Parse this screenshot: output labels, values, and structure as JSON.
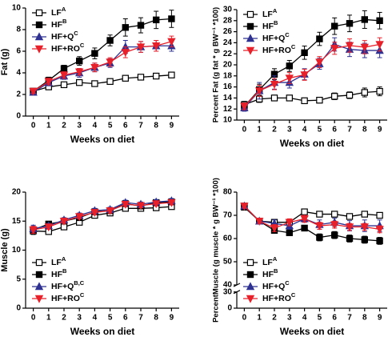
{
  "chart_data": [
    {
      "type": "line",
      "ylabel": "Fat (g)",
      "xlabel": "Weeks on diet",
      "x": [
        0,
        1,
        2,
        3,
        4,
        5,
        6,
        7,
        8,
        9
      ],
      "xlim": [
        -0.5,
        9.5
      ],
      "xticks": [
        0,
        1,
        2,
        3,
        4,
        5,
        6,
        7,
        8,
        9
      ],
      "ylim": [
        0,
        10
      ],
      "yticks": [
        0,
        2,
        4,
        6,
        8,
        10
      ],
      "legend": "upper left",
      "series": [
        {
          "name": "LF",
          "sup": "A",
          "color": "#000",
          "marker": "square-open",
          "values": [
            2.3,
            2.7,
            2.9,
            3.1,
            3.0,
            3.2,
            3.5,
            3.6,
            3.7,
            3.8
          ],
          "errors": [
            0.15,
            0.2,
            0.15,
            0.15,
            0.15,
            0.15,
            0.2,
            0.2,
            0.25,
            0.25
          ]
        },
        {
          "name": "HF",
          "sup": "B",
          "color": "#000",
          "marker": "square",
          "values": [
            2.3,
            3.3,
            4.4,
            5.1,
            5.8,
            7.0,
            8.2,
            8.4,
            8.9,
            9.0
          ],
          "errors": [
            0.2,
            0.3,
            0.3,
            0.4,
            0.5,
            0.5,
            0.8,
            0.7,
            0.8,
            0.8
          ]
        },
        {
          "name": "HF+Q",
          "sup": "C",
          "color": "#2e3192",
          "marker": "triangle",
          "values": [
            2.2,
            3.1,
            3.7,
            4.0,
            4.5,
            4.9,
            6.4,
            6.4,
            6.5,
            6.5
          ],
          "errors": [
            0.2,
            0.3,
            0.3,
            0.4,
            0.4,
            0.4,
            0.6,
            0.5,
            0.5,
            0.5
          ]
        },
        {
          "name": "HF+RO",
          "sup": "C",
          "color": "#e8202a",
          "marker": "triangle-down",
          "values": [
            2.3,
            3.2,
            3.8,
            4.1,
            4.5,
            5.0,
            5.9,
            6.4,
            6.5,
            6.9
          ],
          "errors": [
            0.2,
            0.3,
            0.3,
            0.3,
            0.4,
            0.4,
            0.5,
            0.5,
            0.5,
            0.5
          ]
        }
      ]
    },
    {
      "type": "line",
      "ylabel": "Percent Fat (g fat * g BW⁻¹ *100)",
      "xlabel": "Weeks on diet",
      "x": [
        0,
        1,
        2,
        3,
        4,
        5,
        6,
        7,
        8,
        9
      ],
      "xlim": [
        -0.5,
        9.5
      ],
      "xticks": [
        0,
        1,
        2,
        3,
        4,
        5,
        6,
        7,
        8,
        9
      ],
      "ylim": [
        10,
        30
      ],
      "yticks": [
        10,
        12,
        14,
        16,
        18,
        20,
        22,
        24,
        26,
        28,
        30
      ],
      "legend": "upper left",
      "series": [
        {
          "name": "LF",
          "sup": "A",
          "color": "#000",
          "marker": "square-open",
          "values": [
            12.8,
            13.8,
            14.0,
            14.0,
            13.5,
            13.6,
            14.3,
            14.5,
            15.0,
            15.2
          ],
          "errors": [
            0.6,
            0.6,
            0.5,
            0.5,
            0.5,
            0.5,
            0.6,
            0.6,
            0.8,
            0.8
          ]
        },
        {
          "name": "HF",
          "sup": "B",
          "color": "#000",
          "marker": "square",
          "values": [
            12.5,
            15.5,
            18.3,
            19.8,
            22.2,
            24.7,
            27.0,
            27.5,
            28.2,
            28.0
          ],
          "errors": [
            0.6,
            1.0,
            1.0,
            1.0,
            1.2,
            1.2,
            1.5,
            1.5,
            1.6,
            1.5
          ]
        },
        {
          "name": "HF+Q",
          "sup": "C",
          "color": "#2e3192",
          "marker": "triangle",
          "values": [
            12.2,
            15.3,
            16.8,
            16.8,
            18.3,
            20.2,
            23.7,
            22.8,
            22.6,
            22.6
          ],
          "errors": [
            0.6,
            1.5,
            1.2,
            1.0,
            1.0,
            1.0,
            1.2,
            1.3,
            1.3,
            1.3
          ]
        },
        {
          "name": "HF+RO",
          "sup": "C",
          "color": "#e8202a",
          "marker": "triangle-down",
          "values": [
            12.5,
            15.3,
            16.5,
            17.6,
            18.2,
            20.5,
            23.0,
            23.5,
            23.2,
            23.7
          ],
          "errors": [
            0.6,
            1.0,
            1.0,
            1.0,
            1.0,
            1.0,
            1.1,
            1.2,
            1.2,
            1.2
          ]
        }
      ]
    },
    {
      "type": "line",
      "ylabel": "Muscle (g)",
      "xlabel": "Weeks on diet",
      "x": [
        0,
        1,
        2,
        3,
        4,
        5,
        6,
        7,
        8,
        9
      ],
      "xlim": [
        -0.5,
        9.5
      ],
      "xticks": [
        0,
        1,
        2,
        3,
        4,
        5,
        6,
        7,
        8,
        9
      ],
      "ylim": [
        0,
        20
      ],
      "yticks": [
        0,
        5,
        10,
        15,
        20
      ],
      "legend": "lower left",
      "series": [
        {
          "name": "LF",
          "sup": "A",
          "color": "#000",
          "marker": "square-open",
          "values": [
            13.3,
            13.2,
            14.0,
            14.8,
            16.0,
            16.4,
            17.2,
            17.2,
            17.3,
            17.5
          ],
          "errors": [
            0.6,
            0.5,
            0.4,
            0.4,
            0.4,
            0.4,
            0.4,
            0.4,
            0.4,
            0.4
          ]
        },
        {
          "name": "HF",
          "sup": "B",
          "color": "#000",
          "marker": "square",
          "values": [
            13.5,
            14.5,
            15.0,
            15.6,
            16.6,
            16.8,
            18.0,
            17.6,
            18.2,
            18.3
          ],
          "errors": [
            0.6,
            0.4,
            0.4,
            0.4,
            0.4,
            0.4,
            0.4,
            0.4,
            0.4,
            0.4
          ]
        },
        {
          "name": "HF+Q",
          "sup": "B,C",
          "color": "#2e3192",
          "marker": "triangle",
          "values": [
            13.7,
            14.2,
            15.2,
            16.0,
            16.8,
            17.0,
            18.2,
            17.9,
            18.3,
            18.5
          ],
          "errors": [
            0.6,
            0.4,
            0.4,
            0.4,
            0.4,
            0.4,
            0.4,
            0.4,
            0.4,
            0.4
          ]
        },
        {
          "name": "HF+RO",
          "sup": "C",
          "color": "#e8202a",
          "marker": "triangle-down",
          "values": [
            13.5,
            14.0,
            15.0,
            15.8,
            16.5,
            16.8,
            17.9,
            17.7,
            18.0,
            18.2
          ],
          "errors": [
            0.6,
            0.4,
            0.4,
            0.4,
            0.4,
            0.4,
            0.4,
            0.4,
            0.4,
            0.4
          ]
        }
      ]
    },
    {
      "type": "line",
      "ylabel": "PercentMuscle (g muscle * g BW⁻¹ *100)",
      "xlabel": "Weeks on diet",
      "x": [
        0,
        1,
        2,
        3,
        4,
        5,
        6,
        7,
        8,
        9
      ],
      "xlim": [
        -0.5,
        9.5
      ],
      "xticks": [
        0,
        1,
        2,
        3,
        4,
        5,
        6,
        7,
        8,
        9
      ],
      "ylim": [
        0,
        80
      ],
      "ybreak": [
        30,
        40
      ],
      "yticks": [
        0,
        30,
        40,
        50,
        60,
        70,
        80
      ],
      "legend": "lower left",
      "series": [
        {
          "name": "LF",
          "sup": "A",
          "color": "#000",
          "marker": "square-open",
          "values": [
            74,
            67.5,
            67,
            67,
            71.5,
            70.5,
            70.5,
            69.5,
            70.5,
            70
          ],
          "errors": [
            0.8,
            0.8,
            0.8,
            0.8,
            0.8,
            0.8,
            0.8,
            0.8,
            0.8,
            0.8
          ]
        },
        {
          "name": "HF",
          "sup": "B",
          "color": "#000",
          "marker": "square",
          "values": [
            73.5,
            67.5,
            63.5,
            62.5,
            64.5,
            60.5,
            61.5,
            60,
            59.5,
            59
          ],
          "errors": [
            0.8,
            0.8,
            0.8,
            0.8,
            1.2,
            1.5,
            1.5,
            1.5,
            1.5,
            1.5
          ]
        },
        {
          "name": "HF+Q",
          "sup": "C",
          "color": "#2e3192",
          "marker": "triangle",
          "values": [
            74,
            67.5,
            66.5,
            65.5,
            68.5,
            66,
            67,
            65.5,
            65.5,
            65.5
          ],
          "errors": [
            0.8,
            1.0,
            1.5,
            1.5,
            1.5,
            2.0,
            1.8,
            2.2,
            2.5,
            2.5
          ]
        },
        {
          "name": "HF+RO",
          "sup": "C",
          "color": "#e8202a",
          "marker": "triangle-down",
          "values": [
            74,
            67.5,
            64.5,
            67,
            68.5,
            65.5,
            66,
            65,
            65,
            64
          ],
          "errors": [
            0.8,
            1.0,
            1.5,
            1.5,
            1.5,
            1.5,
            1.5,
            1.5,
            1.5,
            1.5
          ]
        }
      ]
    }
  ]
}
